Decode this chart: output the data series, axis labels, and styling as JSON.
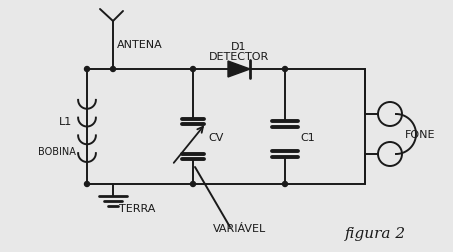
{
  "bg_color": "#e8e8e8",
  "line_color": "#1a1a1a",
  "title": "figura 2",
  "labels": {
    "antena": "ANTENA",
    "d1": "D1",
    "detector": "DETECTOR",
    "cv": "CV",
    "c1": "C1",
    "fone": "FONE",
    "l1": "L1",
    "bobina": "BOBINA",
    "terra": "TERRA",
    "variavel": "VARIÁVEL"
  },
  "figsize": [
    4.53,
    2.53
  ],
  "dpi": 100
}
